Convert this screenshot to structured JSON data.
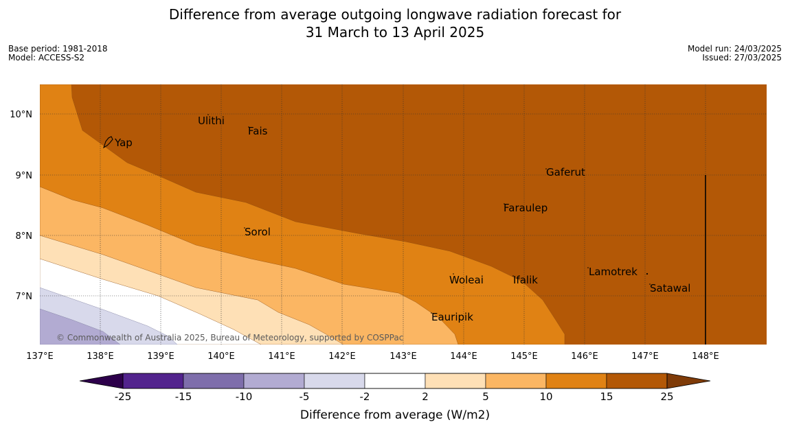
{
  "header": {
    "title_line1": "Difference from average outgoing longwave radiation forecast for",
    "title_line2": "31 March to 13 April 2025",
    "base_period": "Base period: 1981-2018",
    "model": "Model: ACCESS-S2",
    "model_run": "Model run: 24/03/2025",
    "issued": "Issued: 27/03/2025"
  },
  "map": {
    "lat_labels": [
      {
        "value": 10,
        "label": "10°N"
      },
      {
        "value": 9,
        "label": "9°N"
      },
      {
        "value": 8,
        "label": "8°N"
      },
      {
        "value": 7,
        "label": "7°N"
      }
    ],
    "lon_labels": [
      {
        "value": 137,
        "label": "137°E"
      },
      {
        "value": 138,
        "label": "138°E"
      },
      {
        "value": 139,
        "label": "139°E"
      },
      {
        "value": 140,
        "label": "140°E"
      },
      {
        "value": 141,
        "label": "141°E"
      },
      {
        "value": 142,
        "label": "142°E"
      },
      {
        "value": 143,
        "label": "143°E"
      },
      {
        "value": 144,
        "label": "144°E"
      },
      {
        "value": 145,
        "label": "145°E"
      },
      {
        "value": 146,
        "label": "146°E"
      },
      {
        "value": 147,
        "label": "147°E"
      },
      {
        "value": 148,
        "label": "148°E"
      }
    ],
    "places": [
      {
        "name": "Yap",
        "lon": 138.22,
        "lat": 9.52
      },
      {
        "name": "Ulithi",
        "lon": 139.72,
        "lat": 9.85
      },
      {
        "name": "Fais",
        "lon": 140.52,
        "lat": 9.73
      },
      {
        "name": "Gaferut",
        "lon": 145.35,
        "lat": 9.02
      },
      {
        "name": "Faraulep",
        "lon": 144.65,
        "lat": 8.43
      },
      {
        "name": "Sorol",
        "lon": 140.38,
        "lat": 8.03
      },
      {
        "name": "Woleai",
        "lon": 143.9,
        "lat": 7.25
      },
      {
        "name": "Ifalik",
        "lon": 144.45,
        "lat": 7.25
      },
      {
        "name": "Lamotrek",
        "lon": 146.35,
        "lat": 7.38
      },
      {
        "name": "Satawal",
        "lon": 147.05,
        "lat": 7.12
      },
      {
        "name": "Eauripik",
        "lon": 143.45,
        "lat": 6.65
      }
    ],
    "copyright": "© Commonwealth of Australia 2025, Bureau of Meteorology, supported by COSPPac"
  },
  "colorbar": {
    "tick_labels": [
      "-25",
      "-15",
      "-10",
      "-5",
      "-2",
      "2",
      "5",
      "10",
      "15",
      "25"
    ],
    "colors": [
      "#52238d",
      "#7e6eab",
      "#b2abd2",
      "#d8d9eb",
      "#ffffff",
      "#fee0b6",
      "#fbb663",
      "#e08214",
      "#b35806"
    ],
    "extend_low_color": "#2d004b",
    "extend_high_color": "#7f3b08",
    "label": "Difference from average (W/m2)"
  }
}
